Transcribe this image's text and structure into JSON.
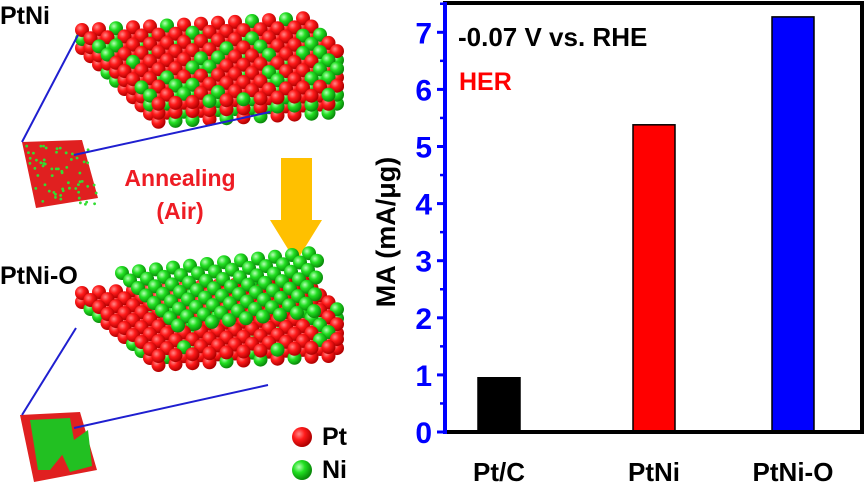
{
  "left_panel": {
    "top_structure_label": "PtNi",
    "bottom_structure_label": "PtNi-O",
    "process_label_line1": "Annealing",
    "process_label_line2": "(Air)",
    "process_color": "#ee1c24",
    "arrow_color": "#ffc000",
    "connector_color": "#1f1fd0",
    "legend": [
      {
        "label": "Pt",
        "color": "#e81010",
        "icon": "red-sphere"
      },
      {
        "label": "Ni",
        "color": "#1fcf1f",
        "icon": "green-sphere"
      }
    ]
  },
  "chart_data": {
    "type": "bar",
    "categories": [
      "Pt/C",
      "PtNi",
      "PtNi-O"
    ],
    "values": [
      0.95,
      5.38,
      7.27
    ],
    "colors": [
      "#000000",
      "#ff0000",
      "#0000ff"
    ],
    "title": "",
    "annotation_line1": "-0.07 V vs. RHE",
    "annotation_line2": "HER",
    "annotation_line2_color": "#ff0000",
    "xlabel": "",
    "ylabel": "MA (mA/μg)",
    "ylim": [
      0,
      7.45
    ],
    "yticks": [
      0,
      1,
      2,
      3,
      4,
      5,
      6,
      7
    ],
    "ytick_labels": [
      "0",
      "1",
      "2",
      "3",
      "4",
      "5",
      "6",
      "7"
    ],
    "minor_ticks": true,
    "yaxis_color": "#0000ff",
    "grid": false,
    "legend": "none"
  }
}
